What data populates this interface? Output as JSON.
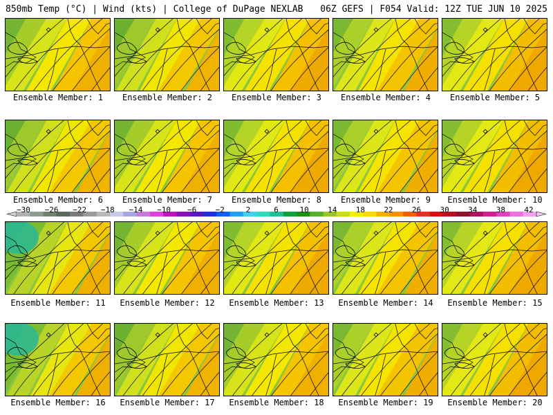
{
  "header": {
    "left": "850mb Temp (°C) | Wind (kts) | College of DuPage NEXLAB",
    "right": "06Z GEFS | F054 Valid: 12Z TUE JUN 10 2025"
  },
  "members": [
    {
      "label": "Ensemble Member: 1",
      "variant": 0
    },
    {
      "label": "Ensemble Member: 2",
      "variant": 1
    },
    {
      "label": "Ensemble Member: 3",
      "variant": 2
    },
    {
      "label": "Ensemble Member: 4",
      "variant": 3
    },
    {
      "label": "Ensemble Member: 5",
      "variant": 4
    },
    {
      "label": "Ensemble Member: 6",
      "variant": 1
    },
    {
      "label": "Ensemble Member: 7",
      "variant": 0
    },
    {
      "label": "Ensemble Member: 8",
      "variant": 2
    },
    {
      "label": "Ensemble Member: 9",
      "variant": 3
    },
    {
      "label": "Ensemble Member: 10",
      "variant": 4
    },
    {
      "label": "Ensemble Member: 11",
      "variant": 5
    },
    {
      "label": "Ensemble Member: 12",
      "variant": 0
    },
    {
      "label": "Ensemble Member: 13",
      "variant": 2
    },
    {
      "label": "Ensemble Member: 14",
      "variant": 3
    },
    {
      "label": "Ensemble Member: 15",
      "variant": 4
    },
    {
      "label": "Ensemble Member: 16",
      "variant": 5
    },
    {
      "label": "Ensemble Member: 17",
      "variant": 1
    },
    {
      "label": "Ensemble Member: 18",
      "variant": 0
    },
    {
      "label": "Ensemble Member: 19",
      "variant": 3
    },
    {
      "label": "Ensemble Member: 20",
      "variant": 4
    }
  ],
  "colorbar": {
    "ticks": [
      "−30",
      "−26",
      "−22",
      "−18",
      "−14",
      "−10",
      "−6",
      "−2",
      "2",
      "6",
      "10",
      "14",
      "18",
      "22",
      "26",
      "30",
      "34",
      "38",
      "42"
    ],
    "colors": [
      "#b0b0b0",
      "#8c9c8c",
      "#6e806e",
      "#5a6a5a",
      "#7a7a7a",
      "#9a9a9a",
      "#b8b8b8",
      "#c8c8e8",
      "#a6a6e0",
      "#c87adc",
      "#e040e0",
      "#c010c0",
      "#8a10b8",
      "#5a18c8",
      "#2030e0",
      "#1060f0",
      "#20a0f0",
      "#40d0f0",
      "#30d8c0",
      "#20c090",
      "#10a040",
      "#189010",
      "#58b028",
      "#98c820",
      "#c8e010",
      "#f0f000",
      "#f8d800",
      "#f8b000",
      "#f89000",
      "#f06000",
      "#e83020",
      "#d81010",
      "#b81020",
      "#901030",
      "#b01060",
      "#d02090",
      "#e040c0",
      "#f070e0",
      "#f8a0f0"
    ]
  }
}
